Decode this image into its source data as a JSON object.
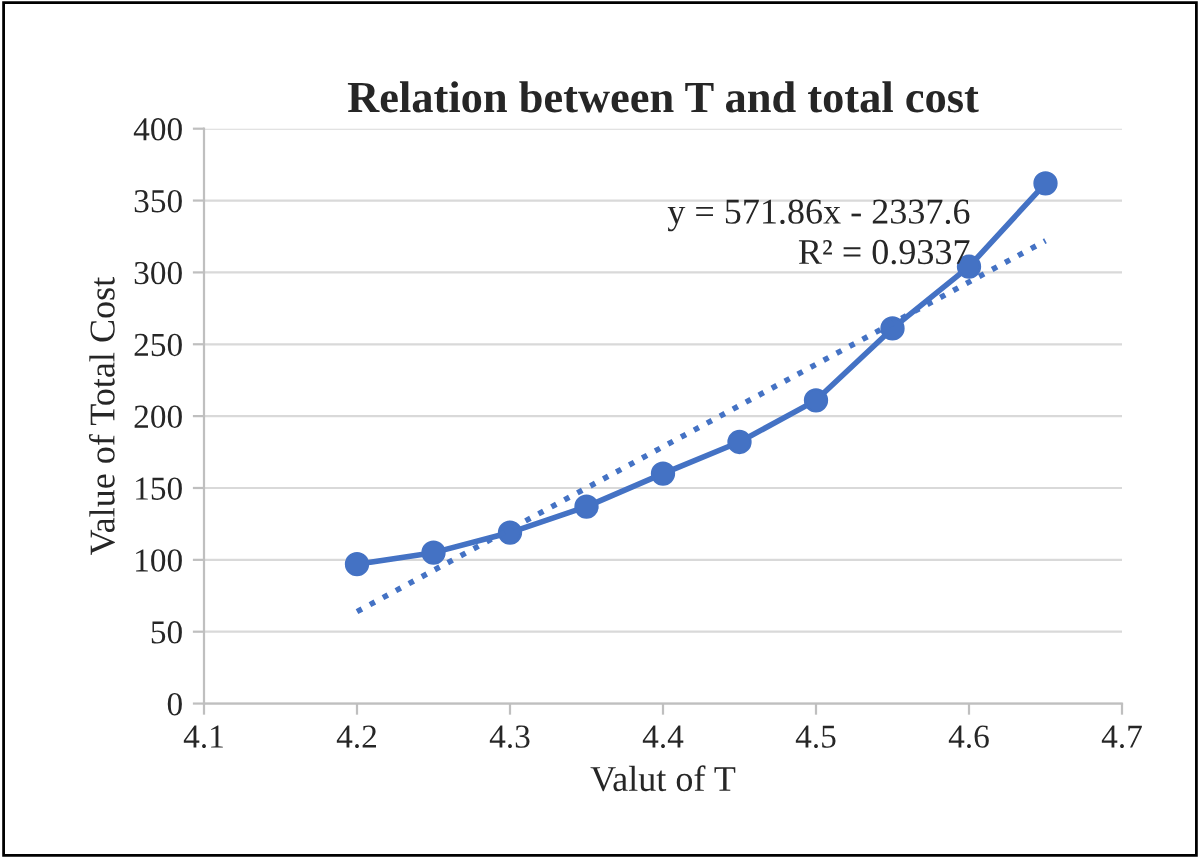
{
  "chart_data": {
    "type": "line",
    "title": "Relation between T and total cost",
    "xlabel": "Valut of T",
    "ylabel": "Value of Total Cost",
    "x": [
      4.2,
      4.25,
      4.3,
      4.35,
      4.4,
      4.45,
      4.5,
      4.55,
      4.6,
      4.65
    ],
    "series": [
      {
        "color": "#4472c4",
        "values": [
          97,
          105,
          119,
          137,
          160,
          182,
          211,
          261,
          304,
          362
        ],
        "marker": "circle",
        "line_style": "solid"
      },
      {
        "type": "line",
        "color": "#4472c4",
        "x": [
          4.2,
          4.65
        ],
        "values": [
          64,
          322
        ],
        "marker": "none",
        "line_style": "dotted"
      }
    ],
    "xlim": [
      4.1,
      4.7
    ],
    "xticks": [
      4.1,
      4.2,
      4.3,
      4.4,
      4.5,
      4.6,
      4.7
    ],
    "ylim": [
      0,
      400
    ],
    "yticks": [
      0,
      50,
      100,
      150,
      200,
      250,
      300,
      350,
      400
    ],
    "grid": "y",
    "legend": false,
    "annotations": [
      "y = 571.86x - 2337.6",
      "R² = 0.9337"
    ]
  }
}
